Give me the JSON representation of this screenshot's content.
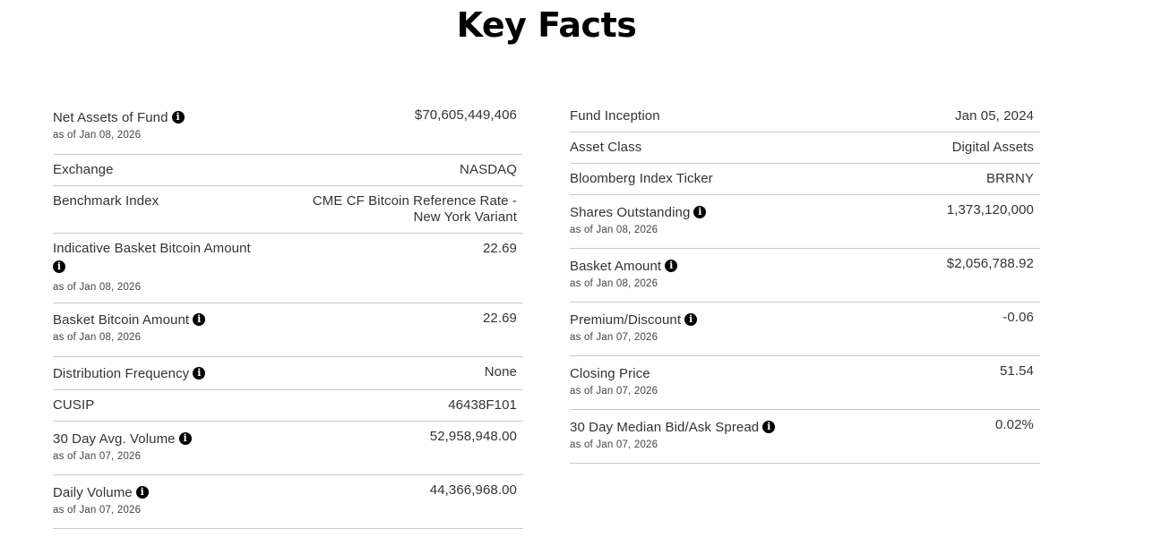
{
  "title": "Key Facts",
  "info_icon_glyph": "i",
  "left": [
    {
      "label": "Net Assets of Fund",
      "info": true,
      "as_of": "as of Jan 08, 2026",
      "value": "$70,605,449,406"
    },
    {
      "label": "Exchange",
      "info": false,
      "as_of": "",
      "value": "NASDAQ"
    },
    {
      "label": "Benchmark Index",
      "info": false,
      "as_of": "",
      "value_line1": "CME CF Bitcoin Reference Rate -",
      "value_line2": "New York Variant"
    },
    {
      "label": "Indicative Basket Bitcoin Amount",
      "info": true,
      "as_of": "as of Jan 08, 2026",
      "value": "22.69"
    },
    {
      "label": "Basket Bitcoin Amount",
      "info": true,
      "as_of": "as of Jan 08, 2026",
      "value": "22.69"
    },
    {
      "label": "Distribution Frequency",
      "info": true,
      "as_of": "",
      "value": "None"
    },
    {
      "label": "CUSIP",
      "info": false,
      "as_of": "",
      "value": "46438F101"
    },
    {
      "label": "30 Day Avg. Volume",
      "info": true,
      "as_of": "as of Jan 07, 2026",
      "value": "52,958,948.00"
    },
    {
      "label": "Daily Volume",
      "info": true,
      "as_of": "as of Jan 07, 2026",
      "value": "44,366,968.00"
    }
  ],
  "right": [
    {
      "label": "Fund Inception",
      "info": false,
      "as_of": "",
      "value": "Jan 05, 2024"
    },
    {
      "label": "Asset Class",
      "info": false,
      "as_of": "",
      "value": "Digital Assets"
    },
    {
      "label": "Bloomberg Index Ticker",
      "info": false,
      "as_of": "",
      "value": "BRRNY"
    },
    {
      "label": "Shares Outstanding",
      "info": true,
      "as_of": "as of Jan 08, 2026",
      "value": "1,373,120,000"
    },
    {
      "label": "Basket Amount",
      "info": true,
      "as_of": "as of Jan 08, 2026",
      "value": "$2,056,788.92"
    },
    {
      "label": "Premium/Discount",
      "info": true,
      "as_of": "as of Jan 07, 2026",
      "value": "-0.06"
    },
    {
      "label": "Closing Price",
      "info": false,
      "as_of": "as of Jan 07, 2026",
      "value": "51.54"
    },
    {
      "label": "30 Day Median Bid/Ask Spread",
      "info": true,
      "as_of": "as of Jan 07, 2026",
      "value": "0.02%"
    }
  ]
}
